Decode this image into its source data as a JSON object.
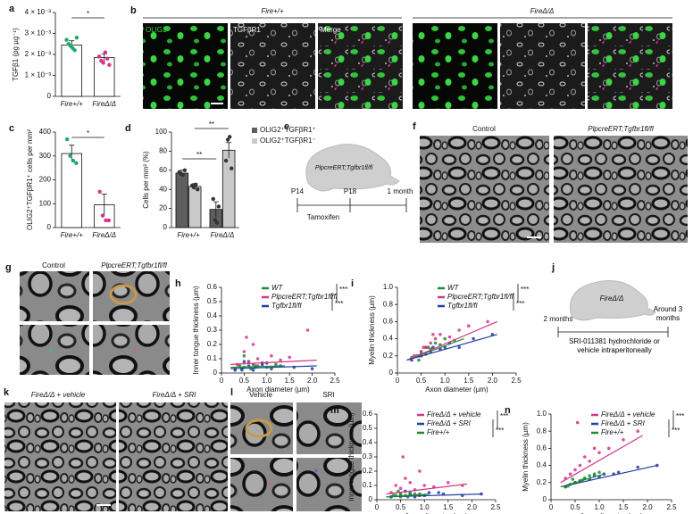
{
  "panels": {
    "b": {
      "label": "b",
      "genotypes": [
        "Fire+/+",
        "FireΔ/Δ"
      ],
      "channels": [
        "OLIG2",
        "TGFβR1",
        "Merge"
      ]
    },
    "e": {
      "label": "e",
      "mouse": "PlpcreERT;Tgfbr1fl/fl",
      "times": [
        "P14",
        "P18",
        "1 month"
      ],
      "treatment": "Tamoxifen"
    },
    "f": {
      "label": "f",
      "groups": [
        "Control",
        "PlpcreERT;Tgfbr1fl/fl"
      ]
    },
    "g": {
      "label": "g",
      "groups": [
        "Control",
        "PlpcreERT;Tgfbr1fl/fl"
      ]
    },
    "j": {
      "label": "j",
      "mouse": "FireΔ/Δ",
      "times": [
        "2 months",
        "Around 3 months"
      ],
      "treatment": "SRI-011381 hydrochloride or vehicle intraperitoneally"
    },
    "k": {
      "label": "k",
      "groups": [
        "FireΔ/Δ + vehicle",
        "FireΔ/Δ + SRI"
      ]
    },
    "l": {
      "label": "l",
      "groups": [
        "Vehicle",
        "SRI"
      ]
    }
  },
  "chart_data": [
    {
      "type": "bar",
      "label": "a",
      "ylabel": "TGFβ1 (pg µg⁻¹)",
      "categories": [
        "Fire+/+",
        "FireΔ/Δ"
      ],
      "values": [
        0.00245,
        0.00185
      ],
      "errors": [
        0.0002,
        0.00018
      ],
      "points": [
        [
          0.0027,
          0.0025,
          0.0024,
          0.0023,
          0.0022,
          0.0028
        ],
        [
          0.0019,
          0.0017,
          0.0016,
          0.0021,
          0.0018,
          0.0015
        ]
      ],
      "colors": [
        "#1fa86a",
        "#d6338a"
      ],
      "ylim": [
        0,
        0.004
      ],
      "yticks": [
        0,
        {
          "value": 0.001,
          "label": "1 × 10⁻³"
        },
        {
          "value": 0.002,
          "label": "2 × 10⁻³"
        },
        {
          "value": 0.003,
          "label": "3 × 10⁻³"
        },
        {
          "value": 0.004,
          "label": "4 × 10⁻³"
        }
      ],
      "significance": [
        "*"
      ]
    },
    {
      "type": "bar",
      "label": "c",
      "ylabel": "OLIG2⁺TGFβR1⁺ cells per mm²",
      "categories": [
        "Fire+/+",
        "FireΔ/Δ"
      ],
      "values": [
        310,
        95
      ],
      "errors": [
        35,
        45
      ],
      "points": [
        [
          370,
          300,
          280,
          270
        ],
        [
          150,
          50,
          30,
          30
        ]
      ],
      "colors": [
        "#1fa86a",
        "#d6338a"
      ],
      "ylim": [
        0,
        400
      ],
      "yticks": [
        0,
        100,
        200,
        300,
        400
      ],
      "significance": [
        "*"
      ]
    },
    {
      "type": "grouped_bar",
      "label": "d",
      "ylabel": "Cells per mm² (%)",
      "categories": [
        "Fire+/+",
        "FireΔ/Δ"
      ],
      "series": [
        {
          "name": "OLIG2⁺TGFβR1⁺",
          "color": "#5e5e5e",
          "values": [
            57,
            19
          ],
          "errors": [
            3,
            8
          ],
          "points": [
            [
              58,
              56,
              55,
              60
            ],
            [
              30,
              8,
              5,
              22
            ]
          ]
        },
        {
          "name": "OLIG2⁺TGFβR1⁻",
          "color": "#c9c9c9",
          "values": [
            43,
            81
          ],
          "errors": [
            3,
            8
          ],
          "points": [
            [
              44,
              42,
              45,
              40
            ],
            [
              70,
              92,
              95,
              62
            ]
          ]
        }
      ],
      "ylim": [
        0,
        100
      ],
      "yticks": [
        0,
        20,
        40,
        60,
        80,
        100
      ],
      "significance": [
        "**",
        "**"
      ]
    },
    {
      "type": "scatter",
      "label": "h",
      "xlabel": "Axon diameter (µm)",
      "ylabel": "Inner tongue thickness (µm)",
      "xlim": [
        0,
        2.5
      ],
      "xticks": [
        0,
        0.5,
        {
          "value": 1,
          "label": "1.0"
        },
        1.5,
        {
          "value": 2,
          "label": "2.0"
        },
        2.5
      ],
      "ylim": [
        0,
        0.6
      ],
      "yticks": [
        0,
        0.1,
        0.2,
        0.3,
        0.4,
        0.5,
        0.6
      ],
      "significance": [
        "***",
        "***"
      ],
      "series": [
        {
          "name": "WT",
          "color": "#1f8c2e",
          "x": [
            0.3,
            0.4,
            0.5,
            0.6,
            0.7,
            0.8,
            0.9,
            1.0,
            1.2,
            0.5,
            0.45,
            0.65
          ],
          "y": [
            0.03,
            0.05,
            0.04,
            0.08,
            0.06,
            0.05,
            0.07,
            0.04,
            0.06,
            0.12,
            0.02,
            0.03
          ],
          "fit": [
            [
              0.2,
              0.04
            ],
            [
              1.4,
              0.05
            ]
          ]
        },
        {
          "name": "PlpcreERT;Tgfbr1fl/fl",
          "color": "#d6338a",
          "x": [
            0.35,
            0.5,
            0.6,
            0.7,
            0.8,
            0.9,
            1.1,
            1.3,
            1.5,
            1.9,
            0.55,
            0.75
          ],
          "y": [
            0.06,
            0.15,
            0.08,
            0.2,
            0.1,
            0.07,
            0.12,
            0.09,
            0.11,
            0.3,
            0.25,
            0.05
          ],
          "fit": [
            [
              0.2,
              0.06
            ],
            [
              2.1,
              0.09
            ]
          ]
        },
        {
          "name": "Tgfbr1fl/fl",
          "color": "#2540a0",
          "x": [
            0.3,
            0.45,
            0.6,
            0.75,
            0.9,
            1.1,
            1.3,
            1.6,
            2.0,
            0.5,
            0.7,
            1.0
          ],
          "y": [
            0.02,
            0.03,
            0.05,
            0.04,
            0.06,
            0.03,
            0.05,
            0.04,
            0.03,
            0.08,
            0.02,
            0.07
          ],
          "fit": [
            [
              0.2,
              0.03
            ],
            [
              2.1,
              0.05
            ]
          ]
        }
      ]
    },
    {
      "type": "scatter",
      "label": "i",
      "xlabel": "Axon diameter (µm)",
      "ylabel": "Myelin thickness (µm)",
      "xlim": [
        0,
        2.5
      ],
      "xticks": [
        0,
        0.5,
        {
          "value": 1,
          "label": "1.0"
        },
        1.5,
        {
          "value": 2,
          "label": "2.0"
        },
        2.5
      ],
      "ylim": [
        0,
        1
      ],
      "yticks": [
        0,
        0.2,
        0.4,
        0.6,
        0.8,
        {
          "value": 1,
          "label": "1.0"
        }
      ],
      "significance": [
        "***",
        "***"
      ],
      "series": [
        {
          "name": "WT",
          "color": "#1f8c2e",
          "x": [
            0.3,
            0.4,
            0.5,
            0.6,
            0.7,
            0.8,
            0.9,
            1.0,
            1.2,
            0.5,
            0.45,
            0.65
          ],
          "y": [
            0.18,
            0.2,
            0.25,
            0.3,
            0.28,
            0.35,
            0.33,
            0.4,
            0.38,
            0.22,
            0.15,
            0.3
          ],
          "fit": [
            [
              0.2,
              0.15
            ],
            [
              1.4,
              0.4
            ]
          ]
        },
        {
          "name": "PlpcreERT;Tgfbr1fl/fl",
          "color": "#d6338a",
          "x": [
            0.35,
            0.5,
            0.6,
            0.7,
            0.8,
            0.9,
            1.1,
            1.3,
            1.5,
            1.9,
            0.55,
            0.75
          ],
          "y": [
            0.2,
            0.25,
            0.3,
            0.35,
            0.4,
            0.45,
            0.42,
            0.5,
            0.55,
            0.6,
            0.3,
            0.45
          ],
          "fit": [
            [
              0.2,
              0.15
            ],
            [
              2.1,
              0.6
            ]
          ]
        },
        {
          "name": "Tgfbr1fl/fl",
          "color": "#2540a0",
          "x": [
            0.3,
            0.45,
            0.6,
            0.75,
            0.9,
            1.1,
            1.3,
            1.6,
            2.0,
            0.5,
            0.7,
            1.0
          ],
          "y": [
            0.15,
            0.2,
            0.22,
            0.3,
            0.28,
            0.35,
            0.3,
            0.4,
            0.45,
            0.2,
            0.25,
            0.3
          ],
          "fit": [
            [
              0.2,
              0.15
            ],
            [
              2.1,
              0.45
            ]
          ]
        }
      ]
    },
    {
      "type": "scatter",
      "label": "m",
      "xlabel": "Axon diameter (µm)",
      "ylabel": "Inner tongue thickness (µm)",
      "xlim": [
        0,
        2.5
      ],
      "xticks": [
        0,
        0.5,
        {
          "value": 1,
          "label": "1.0"
        },
        1.5,
        {
          "value": 2,
          "label": "2.0"
        },
        2.5
      ],
      "ylim": [
        0,
        0.6
      ],
      "yticks": [
        0,
        0.1,
        0.2,
        0.3,
        0.4,
        0.5,
        0.6
      ],
      "significance": [
        "***",
        "***"
      ],
      "series": [
        {
          "name": "FireΔ/Δ + vehicle",
          "color": "#d6338a",
          "x": [
            0.3,
            0.4,
            0.5,
            0.6,
            0.7,
            0.8,
            0.9,
            1.0,
            1.2,
            1.5,
            1.8,
            0.55
          ],
          "y": [
            0.05,
            0.1,
            0.08,
            0.15,
            0.12,
            0.07,
            0.2,
            0.1,
            0.09,
            0.12,
            0.1,
            0.3
          ],
          "fit": [
            [
              0.2,
              0.04
            ],
            [
              1.9,
              0.11
            ]
          ]
        },
        {
          "name": "FireΔ/Δ + SRI",
          "color": "#2540a0",
          "x": [
            0.3,
            0.5,
            0.7,
            0.9,
            1.1,
            1.4,
            1.8,
            2.2,
            0.6,
            0.8,
            1.0,
            1.3
          ],
          "y": [
            0.02,
            0.03,
            0.04,
            0.03,
            0.05,
            0.04,
            0.03,
            0.04,
            0.06,
            0.02,
            0.03,
            0.05
          ],
          "fit": [
            [
              0.2,
              0.02
            ],
            [
              2.2,
              0.04
            ]
          ]
        },
        {
          "name": "Fire+/+",
          "color": "#1f8c2e",
          "x": [
            0.3,
            0.4,
            0.5,
            0.6,
            0.7,
            0.8,
            0.5,
            0.45,
            0.35,
            0.65,
            0.9,
            1.0
          ],
          "y": [
            0.02,
            0.03,
            0.04,
            0.03,
            0.05,
            0.04,
            0.02,
            0.06,
            0.03,
            0.02,
            0.04,
            0.03
          ],
          "fit": [
            [
              0.2,
              0.02
            ],
            [
              1.1,
              0.04
            ]
          ]
        }
      ]
    },
    {
      "type": "scatter",
      "label": "n",
      "xlabel": "Axon diameter (µm)",
      "ylabel": "Myelin thickness (µm)",
      "xlim": [
        0,
        2.5
      ],
      "xticks": [
        0,
        0.5,
        {
          "value": 1,
          "label": "1.0"
        },
        1.5,
        {
          "value": 2,
          "label": "2.0"
        },
        2.5
      ],
      "ylim": [
        0,
        1
      ],
      "yticks": [
        0,
        0.2,
        0.4,
        0.6,
        0.8,
        {
          "value": 1,
          "label": "1.0"
        }
      ],
      "significance": [
        "***",
        "***"
      ],
      "series": [
        {
          "name": "FireΔ/Δ + vehicle",
          "color": "#d6338a",
          "x": [
            0.3,
            0.4,
            0.5,
            0.6,
            0.7,
            0.8,
            0.9,
            1.0,
            1.2,
            1.5,
            1.8,
            0.55
          ],
          "y": [
            0.25,
            0.3,
            0.35,
            0.4,
            0.5,
            0.45,
            0.6,
            0.55,
            0.6,
            0.7,
            0.8,
            0.9
          ],
          "fit": [
            [
              0.2,
              0.2
            ],
            [
              1.9,
              0.75
            ]
          ]
        },
        {
          "name": "FireΔ/Δ + SRI",
          "color": "#2540a0",
          "x": [
            0.3,
            0.5,
            0.7,
            0.9,
            1.1,
            1.4,
            1.8,
            2.2,
            0.6,
            0.8,
            1.0,
            1.3
          ],
          "y": [
            0.15,
            0.2,
            0.25,
            0.28,
            0.3,
            0.32,
            0.38,
            0.4,
            0.22,
            0.24,
            0.27,
            0.3
          ],
          "fit": [
            [
              0.2,
              0.15
            ],
            [
              2.2,
              0.4
            ]
          ]
        },
        {
          "name": "Fire+/+",
          "color": "#1f8c2e",
          "x": [
            0.3,
            0.4,
            0.5,
            0.6,
            0.7,
            0.8,
            0.5,
            0.45,
            0.35,
            0.65,
            0.9,
            1.0
          ],
          "y": [
            0.15,
            0.18,
            0.2,
            0.22,
            0.25,
            0.28,
            0.2,
            0.24,
            0.16,
            0.23,
            0.3,
            0.32
          ],
          "fit": [
            [
              0.2,
              0.15
            ],
            [
              1.1,
              0.3
            ]
          ]
        }
      ]
    }
  ]
}
